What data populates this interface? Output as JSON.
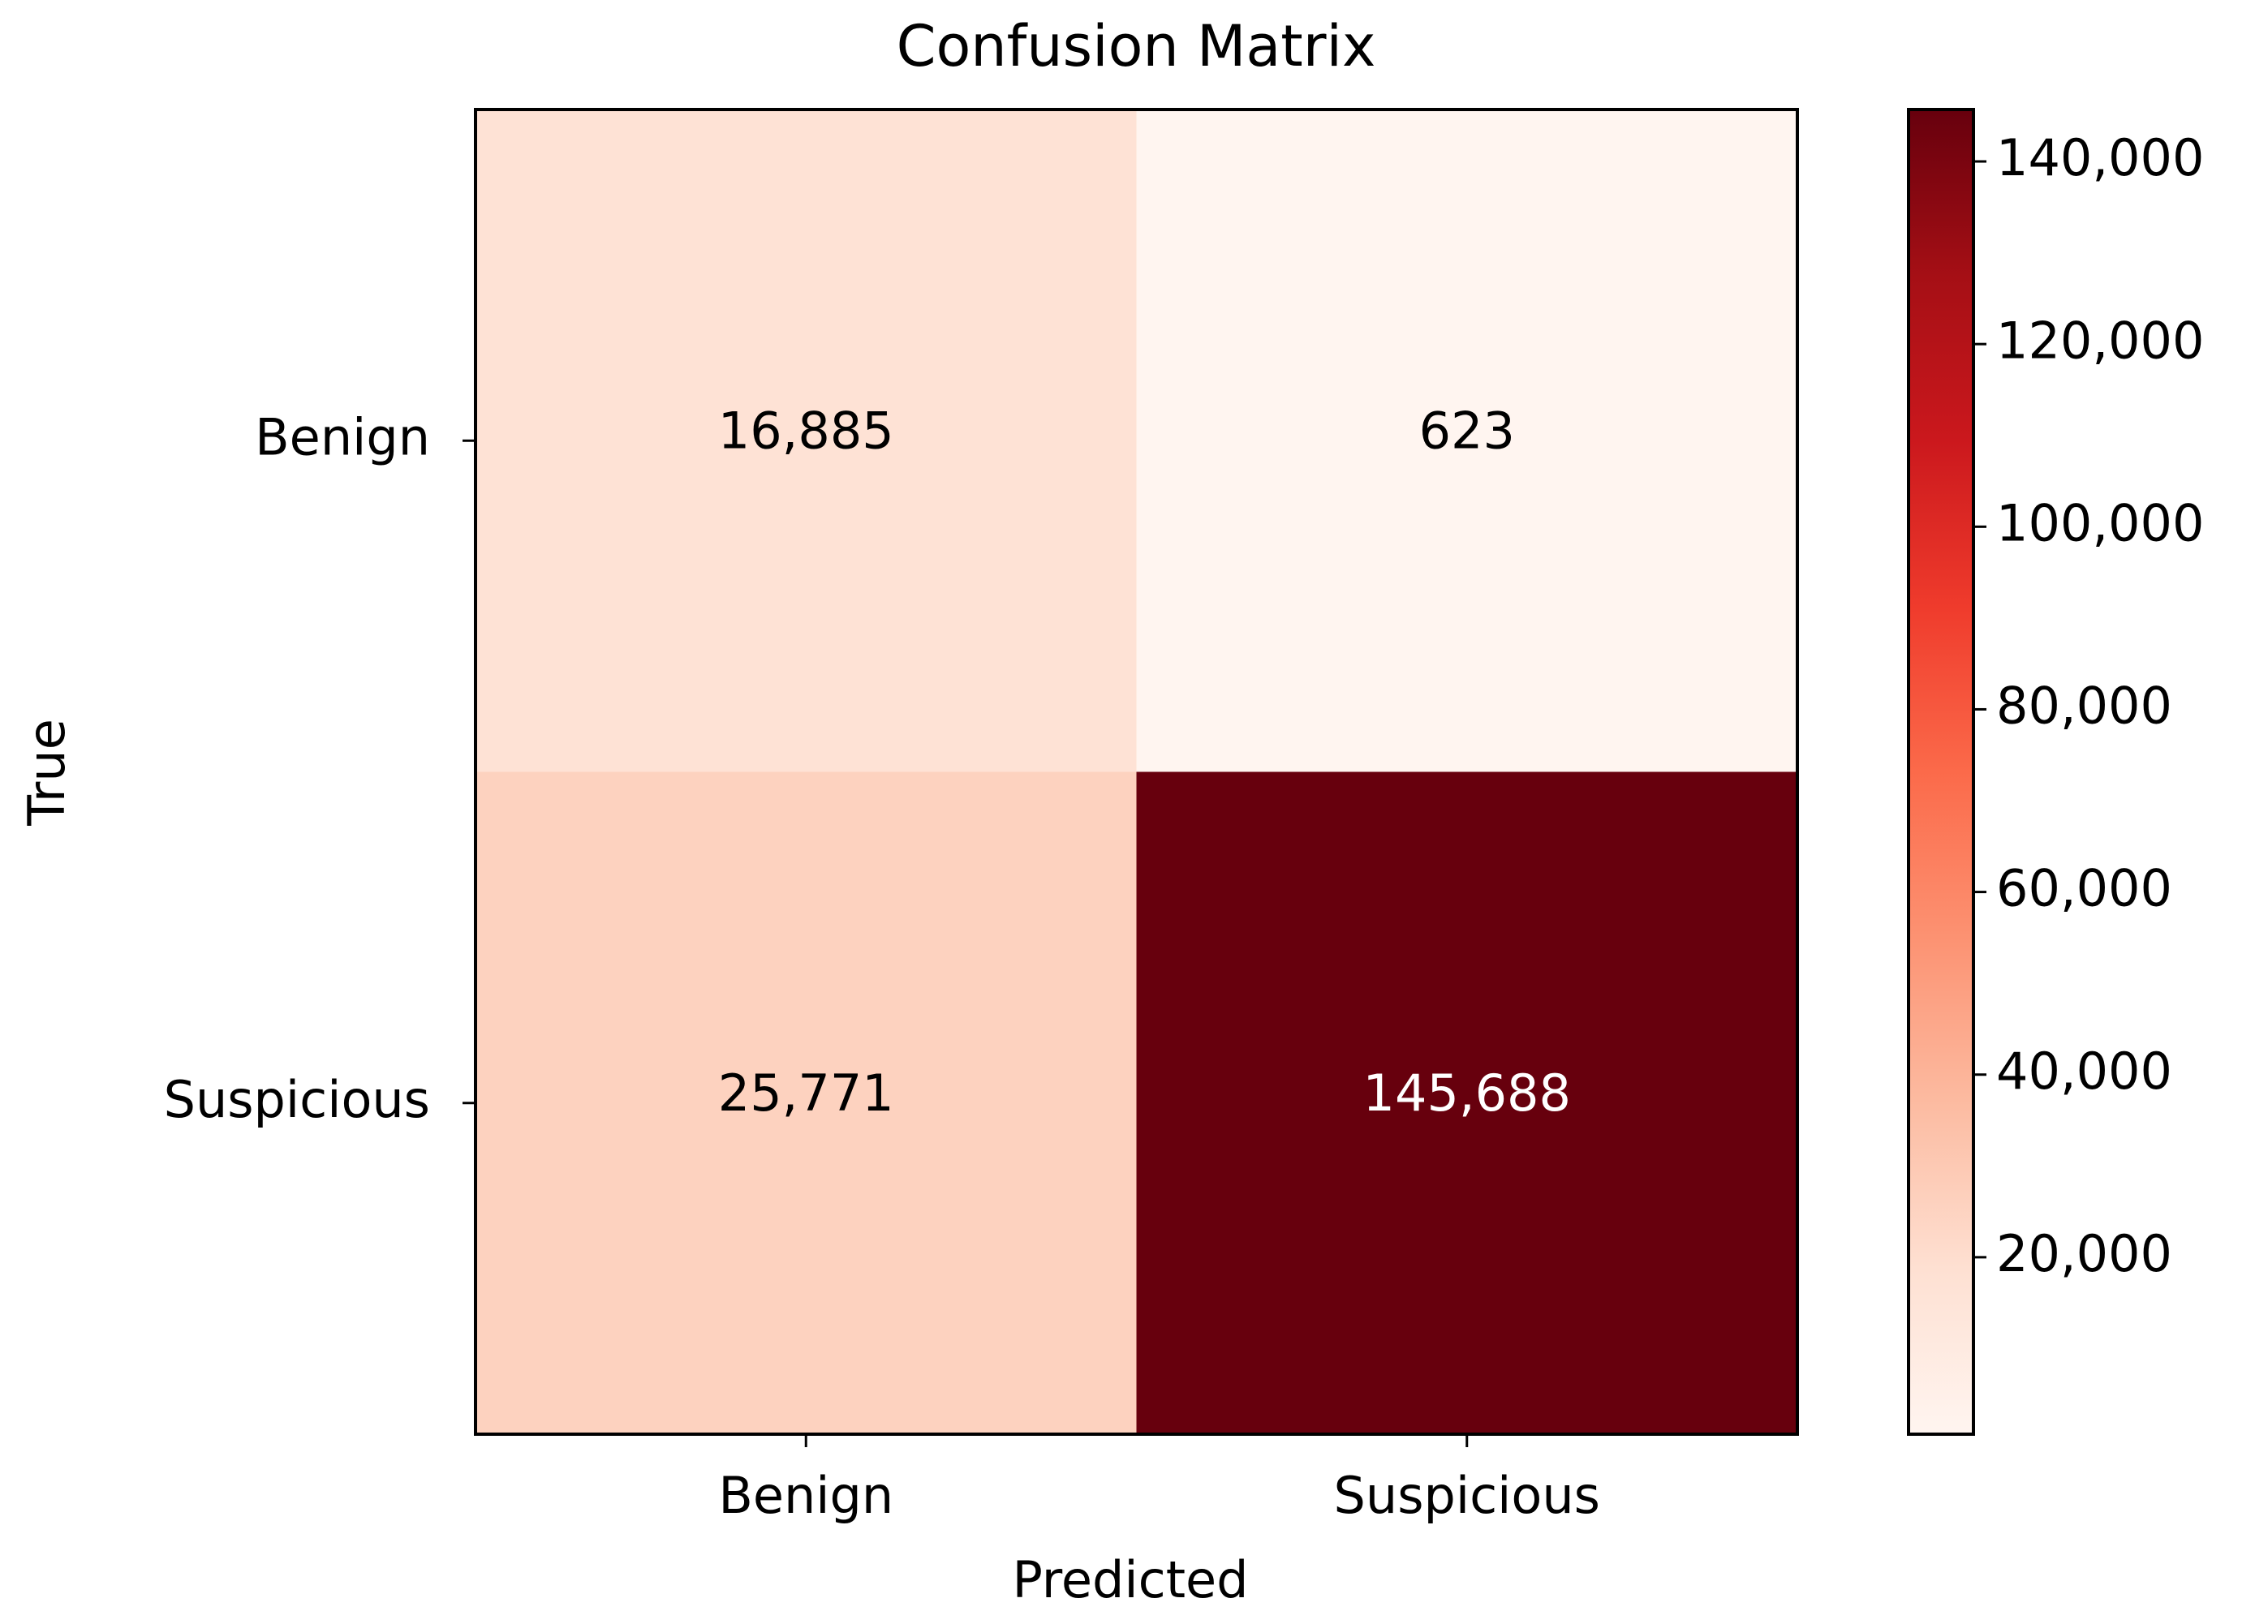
{
  "chart_data": {
    "type": "heatmap",
    "title": "Confusion Matrix",
    "x_label": "Predicted",
    "y_label": "True",
    "x_categories": [
      "Benign",
      "Suspicious"
    ],
    "y_categories": [
      "Benign",
      "Suspicious"
    ],
    "values": [
      [
        16885,
        623
      ],
      [
        25771,
        145688
      ]
    ],
    "value_labels": [
      [
        "16,885",
        "623"
      ],
      [
        "25,771",
        "145,688"
      ]
    ],
    "colormap": "Reds",
    "clim": [
      623,
      145688
    ],
    "cbar_ticks": [
      {
        "value": 20000,
        "label": "20,000"
      },
      {
        "value": 40000,
        "label": "40,000"
      },
      {
        "value": 60000,
        "label": "60,000"
      },
      {
        "value": 80000,
        "label": "80,000"
      },
      {
        "value": 100000,
        "label": "100,000"
      },
      {
        "value": 120000,
        "label": "120,000"
      },
      {
        "value": 140000,
        "label": "140,000"
      }
    ]
  }
}
